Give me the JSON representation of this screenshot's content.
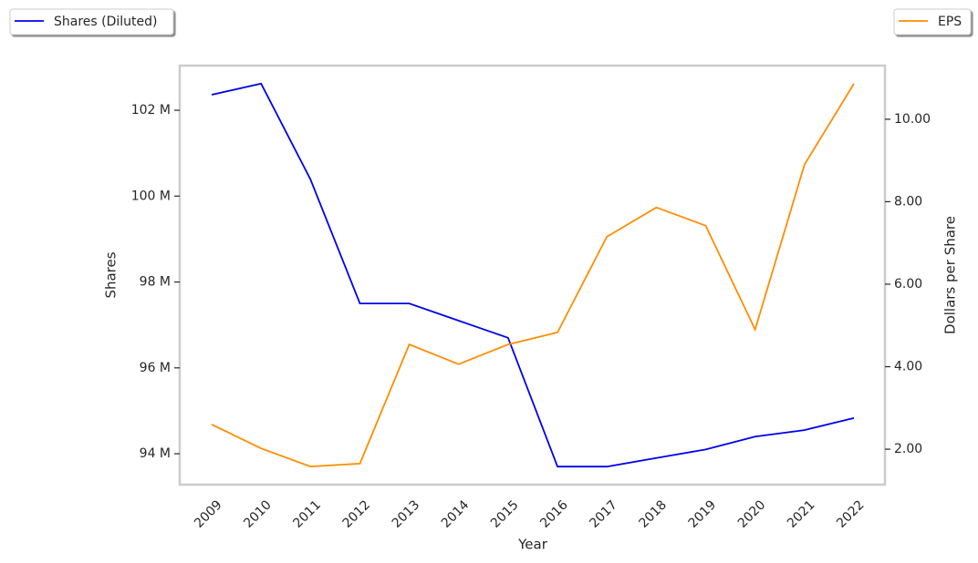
{
  "chart_data": {
    "type": "line",
    "xlabel": "Year",
    "ylabel": "Shares",
    "y2label": "Dollars per Share",
    "categories": [
      "2009",
      "2010",
      "2011",
      "2012",
      "2013",
      "2014",
      "2015",
      "2016",
      "2017",
      "2018",
      "2019",
      "2020",
      "2021",
      "2022"
    ],
    "series": [
      {
        "name": "Shares (Diluted)",
        "color": "#0000ee",
        "axis": "y",
        "values": [
          102.36,
          102.62,
          100.39,
          97.5,
          97.5,
          97.1,
          96.7,
          93.7,
          93.7,
          93.9,
          94.1,
          94.4,
          94.55,
          94.83
        ]
      },
      {
        "name": "EPS",
        "color": "#ff8c00",
        "axis": "y2",
        "values": [
          2.6,
          2.02,
          1.58,
          1.65,
          4.54,
          4.06,
          4.54,
          4.83,
          7.15,
          7.86,
          7.42,
          4.9,
          8.9,
          10.86
        ]
      }
    ],
    "ylim": [
      93.28,
      103.04
    ],
    "yticks": [
      {
        "value": 94,
        "label": "94 M"
      },
      {
        "value": 96,
        "label": "96 M"
      },
      {
        "value": 98,
        "label": "98 M"
      },
      {
        "value": 100,
        "label": "100 M"
      },
      {
        "value": 102,
        "label": "102 M"
      }
    ],
    "y2lim": [
      1.14,
      11.3
    ],
    "y2ticks": [
      {
        "value": 2,
        "label": "2.00"
      },
      {
        "value": 4,
        "label": "4.00"
      },
      {
        "value": 6,
        "label": "6.00"
      },
      {
        "value": 8,
        "label": "8.00"
      },
      {
        "value": 10,
        "label": "10.00"
      }
    ]
  }
}
